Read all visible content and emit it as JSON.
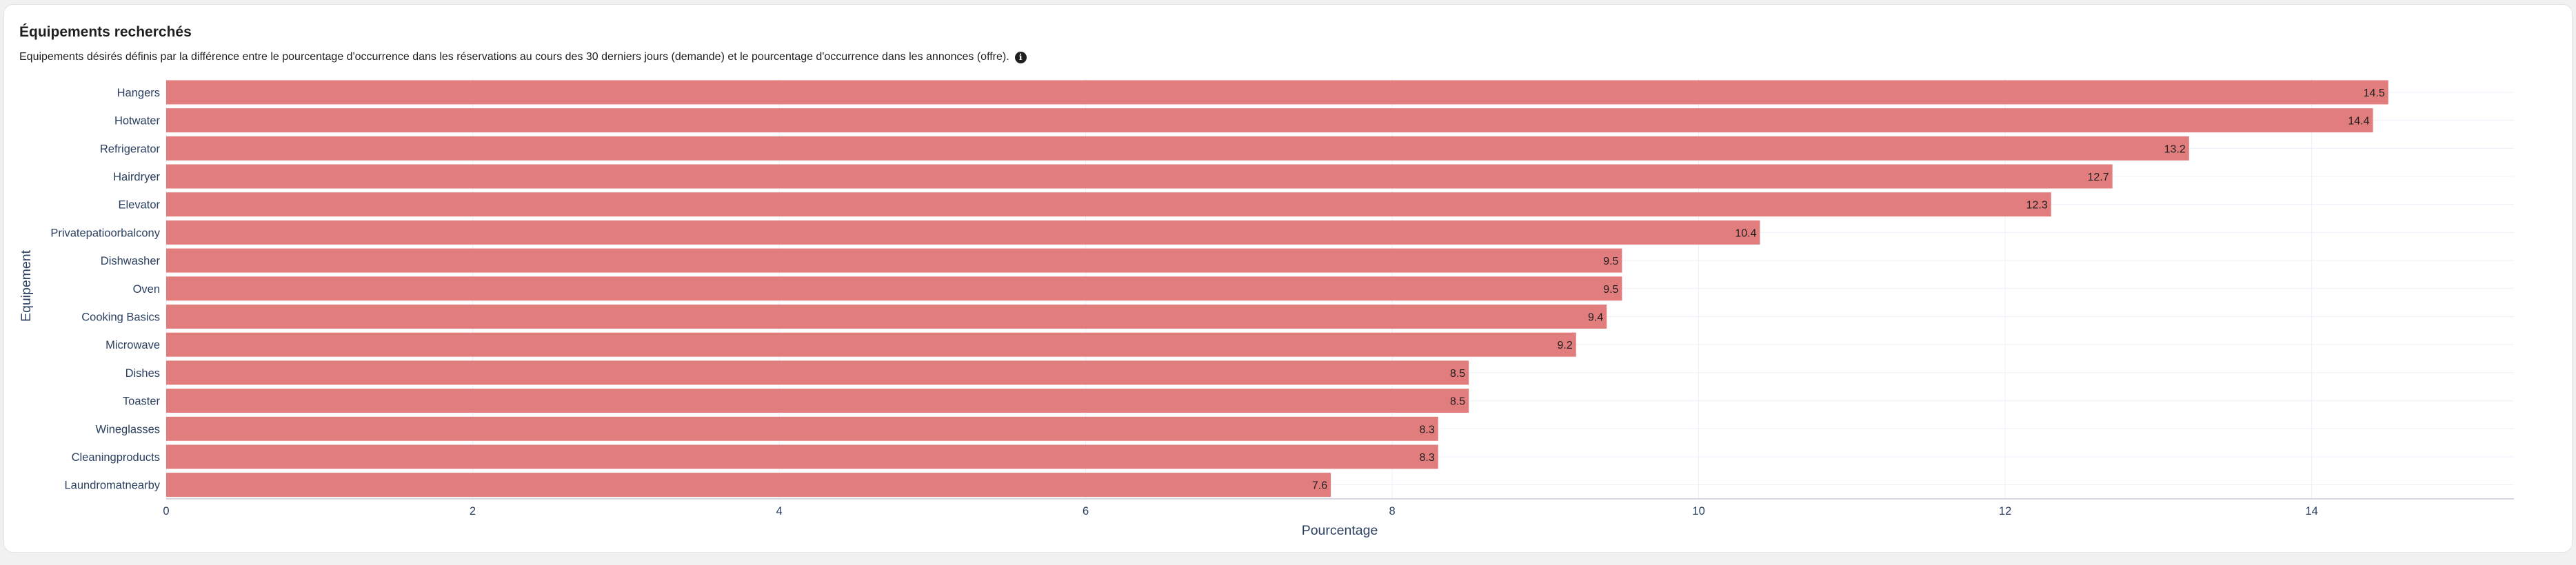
{
  "card": {
    "title": "Équipements recherchés",
    "subtitle": "Equipements désirés définis par la différence entre le pourcentage d'occurrence dans les réservations au cours des 30 derniers jours (demande) et le pourcentage d'occurrence dans les annonces (offre).",
    "info_icon": "info-icon"
  },
  "colors": {
    "bar": "#e27d7e",
    "axis_text": "#2a3f5f",
    "grid": "#ebf0f8"
  },
  "chart_data": {
    "type": "bar",
    "orientation": "horizontal",
    "categories": [
      "Hangers",
      "Hotwater",
      "Refrigerator",
      "Hairdryer",
      "Elevator",
      "Privatepatioorbalcony",
      "Dishwasher",
      "Oven",
      "Cooking Basics",
      "Microwave",
      "Dishes",
      "Toaster",
      "Wineglasses",
      "Cleaningproducts",
      "Laundromatnearby"
    ],
    "values": [
      14.5,
      14.4,
      13.2,
      12.7,
      12.3,
      10.4,
      9.5,
      9.5,
      9.4,
      9.2,
      8.5,
      8.5,
      8.3,
      8.3,
      7.6
    ],
    "value_labels": [
      "14.5",
      "14.4",
      "13.2",
      "12.7",
      "12.3",
      "10.4",
      "9.5",
      "9.5",
      "9.4",
      "9.2",
      "8.5",
      "8.5",
      "8.3",
      "8.3",
      "7.6"
    ],
    "xlabel": "Pourcentage",
    "ylabel": "Equipement",
    "xlim": [
      0,
      15.32
    ],
    "xticks": [
      0,
      2,
      4,
      6,
      8,
      10,
      12,
      14
    ],
    "xtick_labels": [
      "0",
      "2",
      "4",
      "6",
      "8",
      "10",
      "12",
      "14"
    ],
    "grid": true,
    "legend": false
  }
}
